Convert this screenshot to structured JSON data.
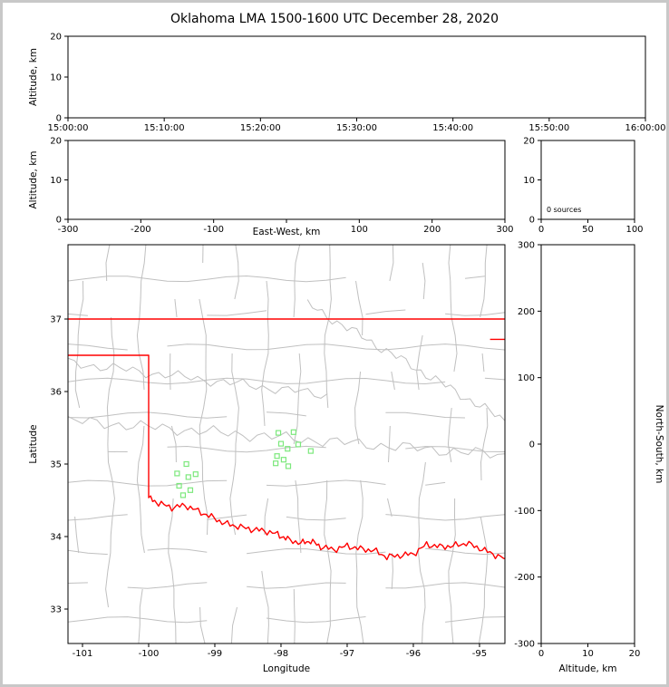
{
  "title": "Oklahoma LMA 1500-1600 UTC December 28, 2020",
  "frame_color": "#c8c8c8",
  "chart_data": [
    {
      "id": "alt_vs_time",
      "type": "scatter",
      "ylabel": "Altitude, km",
      "ylim": [
        0,
        20
      ],
      "yticks": [
        0,
        10,
        20
      ],
      "xtick_labels": [
        "15:00:00",
        "15:10:00",
        "15:20:00",
        "15:30:00",
        "15:40:00",
        "15:50:00",
        "16:00:00"
      ],
      "points": []
    },
    {
      "id": "alt_vs_ew",
      "type": "scatter",
      "xlabel": "East-West, km",
      "ylabel": "Altitude, km",
      "xlim": [
        -300,
        300
      ],
      "xticks": [
        -300,
        -200,
        -100,
        100,
        200,
        300
      ],
      "xticks_unlabeled": [
        0
      ],
      "ylim": [
        0,
        20
      ],
      "yticks": [
        0,
        10,
        20
      ],
      "points": []
    },
    {
      "id": "alt_histogram",
      "type": "scatter",
      "annotation": "0 sources",
      "xlim": [
        0,
        100
      ],
      "xticks": [
        0,
        50,
        100
      ],
      "ylim": [
        0,
        20
      ],
      "yticks": [
        0,
        10,
        20
      ],
      "points": []
    },
    {
      "id": "plan_map",
      "type": "scatter",
      "xlabel": "Longitude",
      "ylabel": "Latitude",
      "xlim": [
        -101.219,
        -94.616
      ],
      "xticks": [
        -101,
        -100,
        -99,
        -98,
        -97,
        -96,
        -95
      ],
      "ylim": [
        32.525,
        38.025
      ],
      "yticks": [
        33,
        34,
        35,
        36,
        37
      ],
      "county_line_color": "#c0c0c0",
      "station_color": "#7ce87c",
      "stations_lon_lat": [
        [
          -98.04,
          35.43
        ],
        [
          -97.81,
          35.44
        ],
        [
          -98.0,
          35.28
        ],
        [
          -97.74,
          35.27
        ],
        [
          -97.9,
          35.21
        ],
        [
          -98.06,
          35.11
        ],
        [
          -97.96,
          35.06
        ],
        [
          -97.55,
          35.18
        ],
        [
          -97.89,
          34.97
        ],
        [
          -98.08,
          35.01
        ],
        [
          -99.43,
          35.0
        ],
        [
          -99.57,
          34.87
        ],
        [
          -99.4,
          34.82
        ],
        [
          -99.29,
          34.86
        ],
        [
          -99.54,
          34.7
        ],
        [
          -99.37,
          34.64
        ],
        [
          -99.48,
          34.57
        ]
      ],
      "state_border": {
        "color": "#ff0000",
        "north_lat": 37.0,
        "panhandle": [
          [
            -101.219,
            36.5
          ],
          [
            -100.0,
            36.5
          ],
          [
            -100.0,
            34.53
          ]
        ],
        "red_river": [
          [
            -100.0,
            34.53
          ],
          [
            -99.85,
            34.46
          ],
          [
            -99.65,
            34.4
          ],
          [
            -99.45,
            34.43
          ],
          [
            -99.25,
            34.35
          ],
          [
            -99.05,
            34.27
          ],
          [
            -98.85,
            34.18
          ],
          [
            -98.65,
            34.14
          ],
          [
            -98.45,
            34.1
          ],
          [
            -98.25,
            34.08
          ],
          [
            -98.05,
            34.03
          ],
          [
            -97.9,
            33.96
          ],
          [
            -97.7,
            33.91
          ],
          [
            -97.55,
            33.94
          ],
          [
            -97.4,
            33.86
          ],
          [
            -97.2,
            33.82
          ],
          [
            -97.0,
            33.87
          ],
          [
            -96.8,
            33.83
          ],
          [
            -96.6,
            33.81
          ],
          [
            -96.4,
            33.72
          ],
          [
            -96.2,
            33.74
          ],
          [
            -96.0,
            33.76
          ],
          [
            -95.8,
            33.89
          ],
          [
            -95.6,
            33.86
          ],
          [
            -95.4,
            33.87
          ],
          [
            -95.2,
            33.91
          ],
          [
            -95.0,
            33.84
          ],
          [
            -94.8,
            33.76
          ],
          [
            -94.6,
            33.69
          ]
        ],
        "extra": [
          [
            [
              -94.84,
              36.72
            ],
            [
              -94.6,
              36.72
            ]
          ]
        ]
      },
      "points": []
    },
    {
      "id": "ns_vs_alt",
      "type": "scatter",
      "xlabel": "Altitude, km",
      "ylabel": "North-South, km",
      "ylabel_side": "right",
      "xlim": [
        0,
        20
      ],
      "xticks": [
        0,
        10,
        20
      ],
      "ylim": [
        -300,
        300
      ],
      "yticks": [
        -300,
        -200,
        -100,
        0,
        100,
        200,
        300
      ],
      "points": []
    }
  ]
}
